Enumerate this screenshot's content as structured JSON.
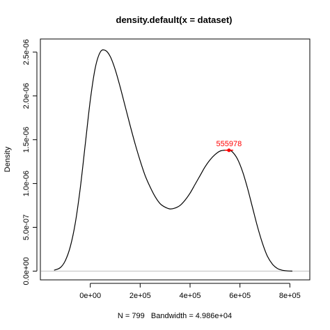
{
  "chart_data": {
    "type": "line",
    "title": "density.default(x = dataset)",
    "xlabel": "N = 799   Bandwidth = 4.986e+04",
    "ylabel": "Density",
    "xlim": [
      -200000,
      880000
    ],
    "ylim": [
      -1e-07,
      2.65e-06
    ],
    "x_ticks": [
      {
        "value": 0,
        "label": "0e+00"
      },
      {
        "value": 200000,
        "label": "2e+05"
      },
      {
        "value": 400000,
        "label": "4e+05"
      },
      {
        "value": 600000,
        "label": "6e+05"
      },
      {
        "value": 800000,
        "label": "8e+05"
      }
    ],
    "y_ticks": [
      {
        "value": 0,
        "label": "0.0e+00"
      },
      {
        "value": 5e-07,
        "label": "5.0e-07"
      },
      {
        "value": 1e-06,
        "label": "1.0e-06"
      },
      {
        "value": 1.5e-06,
        "label": "1.5e-06"
      },
      {
        "value": 2e-06,
        "label": "2.0e-06"
      },
      {
        "value": 2.5e-06,
        "label": "2.5e-06"
      }
    ],
    "grid": false,
    "baseline": {
      "y": 0,
      "color": "#bebebe"
    },
    "series": [
      {
        "color": "#000000",
        "x": [
          -145000,
          -120000,
          -100000,
          -80000,
          -60000,
          -40000,
          -20000,
          0,
          20000,
          40000,
          60000,
          80000,
          100000,
          120000,
          140000,
          160000,
          180000,
          200000,
          220000,
          240000,
          260000,
          280000,
          300000,
          320000,
          340000,
          360000,
          380000,
          400000,
          420000,
          440000,
          460000,
          480000,
          500000,
          520000,
          540000,
          556000,
          570000,
          590000,
          610000,
          630000,
          650000,
          670000,
          690000,
          710000,
          730000,
          750000,
          770000,
          790000,
          810000
        ],
        "y": [
          1e-08,
          4e-08,
          1.2e-07,
          2.8e-07,
          5.5e-07,
          9.5e-07,
          1.45e-06,
          1.95e-06,
          2.32e-06,
          2.5e-06,
          2.52e-06,
          2.45e-06,
          2.3e-06,
          2.1e-06,
          1.88e-06,
          1.66e-06,
          1.45e-06,
          1.26e-06,
          1.09e-06,
          9.6e-07,
          8.5e-07,
          7.7e-07,
          7.3e-07,
          7.1e-07,
          7.2e-07,
          7.5e-07,
          8.1e-07,
          8.9e-07,
          9.9e-07,
          1.09e-06,
          1.19e-06,
          1.27e-06,
          1.33e-06,
          1.37e-06,
          1.38e-06,
          1.38e-06,
          1.36e-06,
          1.28e-06,
          1.14e-06,
          9.5e-07,
          7.3e-07,
          5.1e-07,
          3.2e-07,
          1.7e-07,
          8e-08,
          3e-08,
          1e-08,
          3e-09,
          0.0
        ]
      }
    ],
    "peak_annotation": {
      "x": 555978,
      "y": 1.38e-06,
      "label": "555978",
      "color": "#ff0000"
    }
  }
}
